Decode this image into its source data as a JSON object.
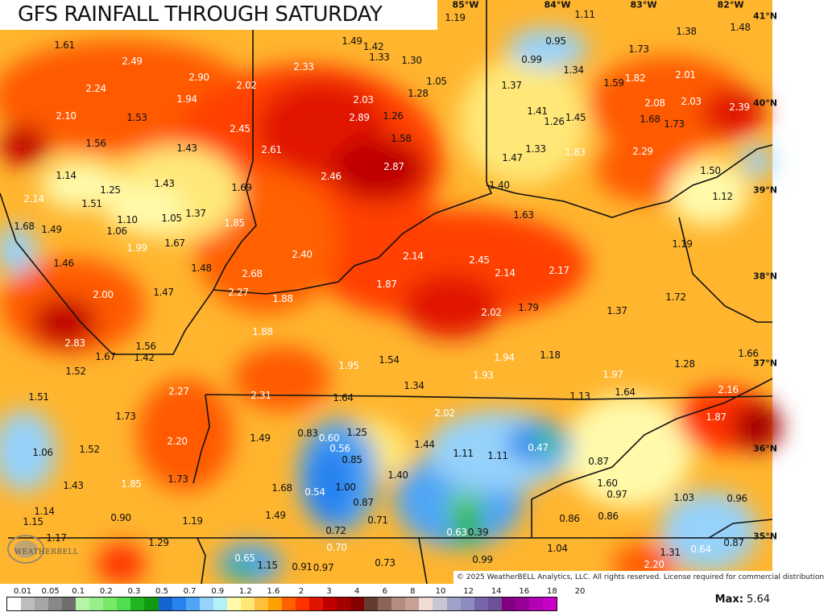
{
  "title": "GFS RAINFALL THROUGH SATURDAY",
  "copyright": "© 2025 WeatherBELL Analytics, LLC. All rights reserved. License required for commercial distribution",
  "logo_text": "WEATHERBELL",
  "longitudes": [
    "85°W",
    "84°W",
    "83°W",
    "82°W"
  ],
  "latitudes": [
    "41°N",
    "40°N",
    "39°N",
    "38°N",
    "37°N",
    "36°N",
    "35°N"
  ],
  "units_note": "",
  "values": [
    "1.61",
    "2.49",
    "2.90",
    "2.02",
    "2.24",
    "1.94",
    "2.10",
    "1.53",
    "2.45",
    "1.56",
    "1.43",
    "2.61",
    "1.14",
    "1.43",
    "1.25",
    "1.69",
    "2.14",
    "1.51",
    "1.10",
    "1.05",
    "1.37",
    "1.68",
    "1.49",
    "1.06",
    "1.85",
    "1.99",
    "1.67",
    "1.46",
    "1.48",
    "2.68",
    "2.00",
    "1.47",
    "2.27",
    "1.88",
    "2.33",
    "1.49",
    "1.42",
    "1.33",
    "1.30",
    "1.05",
    "1.28",
    "2.03",
    "2.89",
    "1.26",
    "1.58",
    "2.87",
    "2.46",
    "2.40",
    "2.14",
    "2.45",
    "2.14",
    "2.17",
    "1.87",
    "2.02",
    "1.79",
    "1.37",
    "1.72",
    "1.19",
    "1.11",
    "0.95",
    "0.99",
    "1.34",
    "1.38",
    "1.48",
    "1.73",
    "1.59",
    "1.82",
    "2.01",
    "1.37",
    "1.41",
    "1.26",
    "1.45",
    "2.08",
    "2.03",
    "2.39",
    "1.68",
    "1.73",
    "1.47",
    "1.33",
    "1.83",
    "2.29",
    "1.50",
    "1.40",
    "1.12",
    "1.63",
    "1.19",
    "2.83",
    "1.56",
    "1.67",
    "1.42",
    "1.52",
    "1.51",
    "2.27",
    "1.73",
    "2.20",
    "1.52",
    "1.06",
    "1.43",
    "1.85",
    "1.73",
    "1.14",
    "1.15",
    "0.90",
    "1.19",
    "1.17",
    "1.29",
    "1.88",
    "1.95",
    "2.31",
    "1.64",
    "1.49",
    "0.83",
    "0.60",
    "1.25",
    "0.56",
    "0.85",
    "1.68",
    "0.54",
    "1.00",
    "0.87",
    "1.49",
    "0.71",
    "0.72",
    "0.70",
    "0.65",
    "1.15",
    "0.91",
    "0.97",
    "0.73",
    "1.54",
    "1.34",
    "1.94",
    "1.18",
    "1.93",
    "1.97",
    "1.28",
    "1.66",
    "1.13",
    "1.64",
    "2.16",
    "2.02",
    "1.87",
    "1.44",
    "1.11",
    "1.11",
    "0.47",
    "0.87",
    "1.40",
    "1.60",
    "0.97",
    "1.03",
    "0.96",
    "0.86",
    "0.86",
    "0.63",
    "0.39",
    "1.04",
    "0.87",
    "1.31",
    "0.64",
    "0.99",
    "2.20"
  ],
  "legend": {
    "labels": [
      "0.01",
      "0.05",
      "0.1",
      "0.2",
      "0.3",
      "0.5",
      "0.7",
      "0.9",
      "1.2",
      "1.6",
      "2",
      "3",
      "4",
      "6",
      "8",
      "10",
      "12",
      "14",
      "16",
      "18",
      "20"
    ],
    "colors": [
      "#ffffff",
      "#bdbdbd",
      "#a6a6a6",
      "#888888",
      "#6e6e6e",
      "#b4f5a8",
      "#98ef8a",
      "#78e868",
      "#50de50",
      "#22b422",
      "#0f9a0f",
      "#1464d2",
      "#2882f0",
      "#50a5f5",
      "#96d2fa",
      "#b4f0fa",
      "#fffaaa",
      "#ffe878",
      "#ffc03c",
      "#ffa000",
      "#ff6000",
      "#ff3200",
      "#e11400",
      "#c00000",
      "#a50000",
      "#870000",
      "#643c32",
      "#8c645a",
      "#b48c82",
      "#c8a096",
      "#f0dcd2",
      "#c8c8d2",
      "#a0a0c8",
      "#8c8cbe",
      "#7864aa",
      "#6e5096",
      "#820082",
      "#960096",
      "#b400b4",
      "#c800c8"
    ],
    "max_label": "Max:",
    "max_value": "5.64"
  }
}
